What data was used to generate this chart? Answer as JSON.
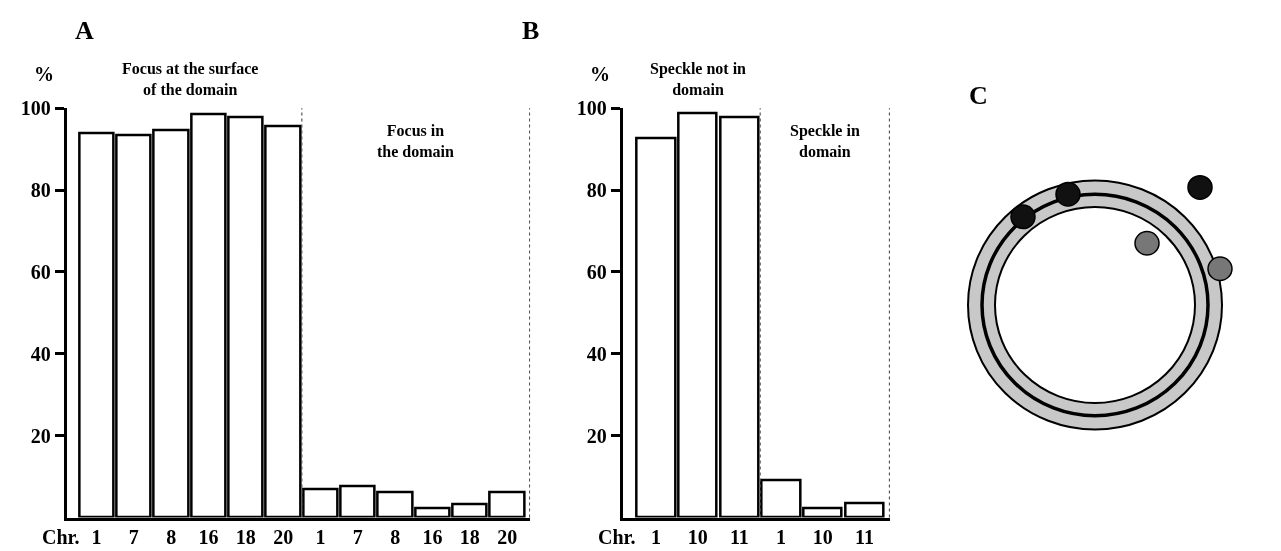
{
  "chart_data": [
    {
      "type": "bar",
      "title": "A",
      "ylabel": "%",
      "xlabel": "Chr.",
      "categories": [
        "1",
        "7",
        "8",
        "16",
        "18",
        "20",
        "1",
        "7",
        "8",
        "16",
        "18",
        "20"
      ],
      "values": [
        93.8,
        93.3,
        94.7,
        98.6,
        97.9,
        95.5,
        6.8,
        7.6,
        6.2,
        2.4,
        3.2,
        6.2
      ],
      "color": "#ffffff",
      "ylim": [
        0,
        100
      ],
      "yticks": [
        20,
        40,
        60,
        80,
        100
      ],
      "annotations": [
        "Focus at the surface\nof the domain",
        "Focus in\nthe domain"
      ]
    },
    {
      "type": "bar",
      "title": "B",
      "ylabel": "%",
      "xlabel": "Chr.",
      "categories": [
        "1",
        "10",
        "11",
        "1",
        "10",
        "11"
      ],
      "values": [
        92.7,
        98.9,
        97.8,
        9,
        2.2,
        3.5
      ],
      "color": "#ffffff",
      "ylim": [
        0,
        100
      ],
      "yticks": [
        20,
        40,
        60,
        80,
        100
      ],
      "annotations": [
        "Speckle not in\ndomain",
        "Speckle in\ndomain"
      ]
    },
    {
      "type": "other",
      "title": "C"
    }
  ]
}
